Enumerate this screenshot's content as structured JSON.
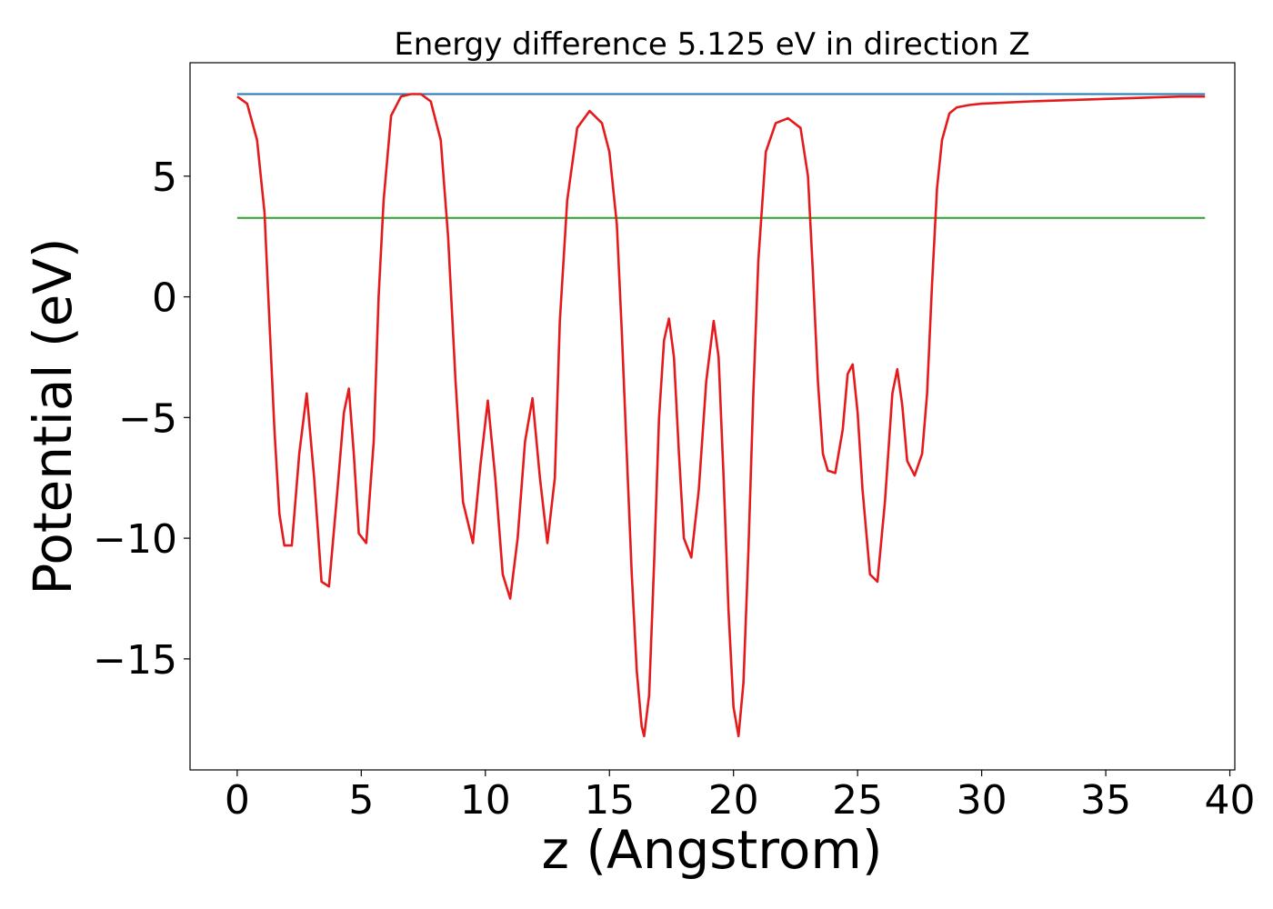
{
  "chart_data": {
    "type": "line",
    "title": "Energy difference 5.125 eV in direction Z",
    "xlabel": "z (Angstrom)",
    "ylabel": "Potential (eV)",
    "xlim": [
      -1.9,
      40.2
    ],
    "ylim": [
      -19.6,
      9.7
    ],
    "xticks": [
      0,
      5,
      10,
      15,
      20,
      25,
      30,
      35,
      40
    ],
    "xtick_labels": [
      "0",
      "5",
      "10",
      "15",
      "20",
      "25",
      "30",
      "35",
      "40"
    ],
    "yticks": [
      -15,
      -10,
      -5,
      0,
      5
    ],
    "ytick_labels": [
      "−15",
      "−10",
      "−5",
      "0",
      "5"
    ],
    "grid": false,
    "series": [
      {
        "color": "#1f77b4",
        "x": [
          0,
          39
        ],
        "y": [
          8.4,
          8.4
        ]
      },
      {
        "color": "#2ca02c",
        "x": [
          0,
          39
        ],
        "y": [
          3.27,
          3.27
        ]
      },
      {
        "color": "#e41a1c",
        "x": [
          0.0,
          0.4,
          0.8,
          1.1,
          1.3,
          1.5,
          1.7,
          1.9,
          2.2,
          2.5,
          2.8,
          3.1,
          3.4,
          3.7,
          4.0,
          4.3,
          4.5,
          4.7,
          4.9,
          5.2,
          5.5,
          5.7,
          5.9,
          6.2,
          6.6,
          7.0,
          7.4,
          7.8,
          8.2,
          8.5,
          8.8,
          9.1,
          9.5,
          9.8,
          10.1,
          10.4,
          10.7,
          11.0,
          11.3,
          11.6,
          11.9,
          12.2,
          12.5,
          12.8,
          13.0,
          13.3,
          13.7,
          14.2,
          14.7,
          15.0,
          15.3,
          15.5,
          15.7,
          15.9,
          16.1,
          16.3,
          16.4,
          16.6,
          16.8,
          17.0,
          17.2,
          17.4,
          17.6,
          17.8,
          18.0,
          18.3,
          18.6,
          18.9,
          19.2,
          19.4,
          19.6,
          19.8,
          20.0,
          20.2,
          20.4,
          20.6,
          20.8,
          21.0,
          21.3,
          21.7,
          22.2,
          22.7,
          23.0,
          23.2,
          23.4,
          23.6,
          23.8,
          24.1,
          24.4,
          24.6,
          24.8,
          25.0,
          25.2,
          25.5,
          25.8,
          26.1,
          26.4,
          26.6,
          26.8,
          27.0,
          27.3,
          27.6,
          27.8,
          28.0,
          28.2,
          28.4,
          28.7,
          29.0,
          29.5,
          30.0,
          32.0,
          35.0,
          38.0,
          39.0
        ],
        "y": [
          8.3,
          8.0,
          6.5,
          3.5,
          -1.0,
          -5.5,
          -9.0,
          -10.3,
          -10.3,
          -6.5,
          -4.0,
          -7.5,
          -11.8,
          -12.0,
          -8.5,
          -4.8,
          -3.8,
          -6.5,
          -9.8,
          -10.2,
          -6.0,
          0.0,
          4.0,
          7.5,
          8.3,
          8.4,
          8.4,
          8.1,
          6.5,
          2.5,
          -3.5,
          -8.5,
          -10.2,
          -7.0,
          -4.3,
          -7.5,
          -11.5,
          -12.5,
          -10.0,
          -6.0,
          -4.2,
          -7.5,
          -10.2,
          -7.5,
          -1.0,
          4.0,
          7.0,
          7.7,
          7.2,
          6.0,
          3.0,
          -1.5,
          -6.5,
          -11.5,
          -15.5,
          -17.8,
          -18.2,
          -16.5,
          -11.0,
          -5.0,
          -1.8,
          -0.9,
          -2.5,
          -6.5,
          -10.0,
          -10.8,
          -8.0,
          -3.5,
          -1.0,
          -2.5,
          -7.5,
          -13.0,
          -17.0,
          -18.2,
          -16.0,
          -10.5,
          -4.0,
          1.5,
          6.0,
          7.2,
          7.4,
          7.0,
          5.0,
          1.0,
          -3.5,
          -6.5,
          -7.2,
          -7.3,
          -5.5,
          -3.2,
          -2.8,
          -4.8,
          -8.0,
          -11.5,
          -11.8,
          -8.5,
          -4.0,
          -3.0,
          -4.5,
          -6.8,
          -7.4,
          -6.5,
          -4.0,
          0.5,
          4.5,
          6.5,
          7.6,
          7.85,
          7.95,
          8.0,
          8.1,
          8.2,
          8.3,
          8.3
        ]
      }
    ]
  }
}
